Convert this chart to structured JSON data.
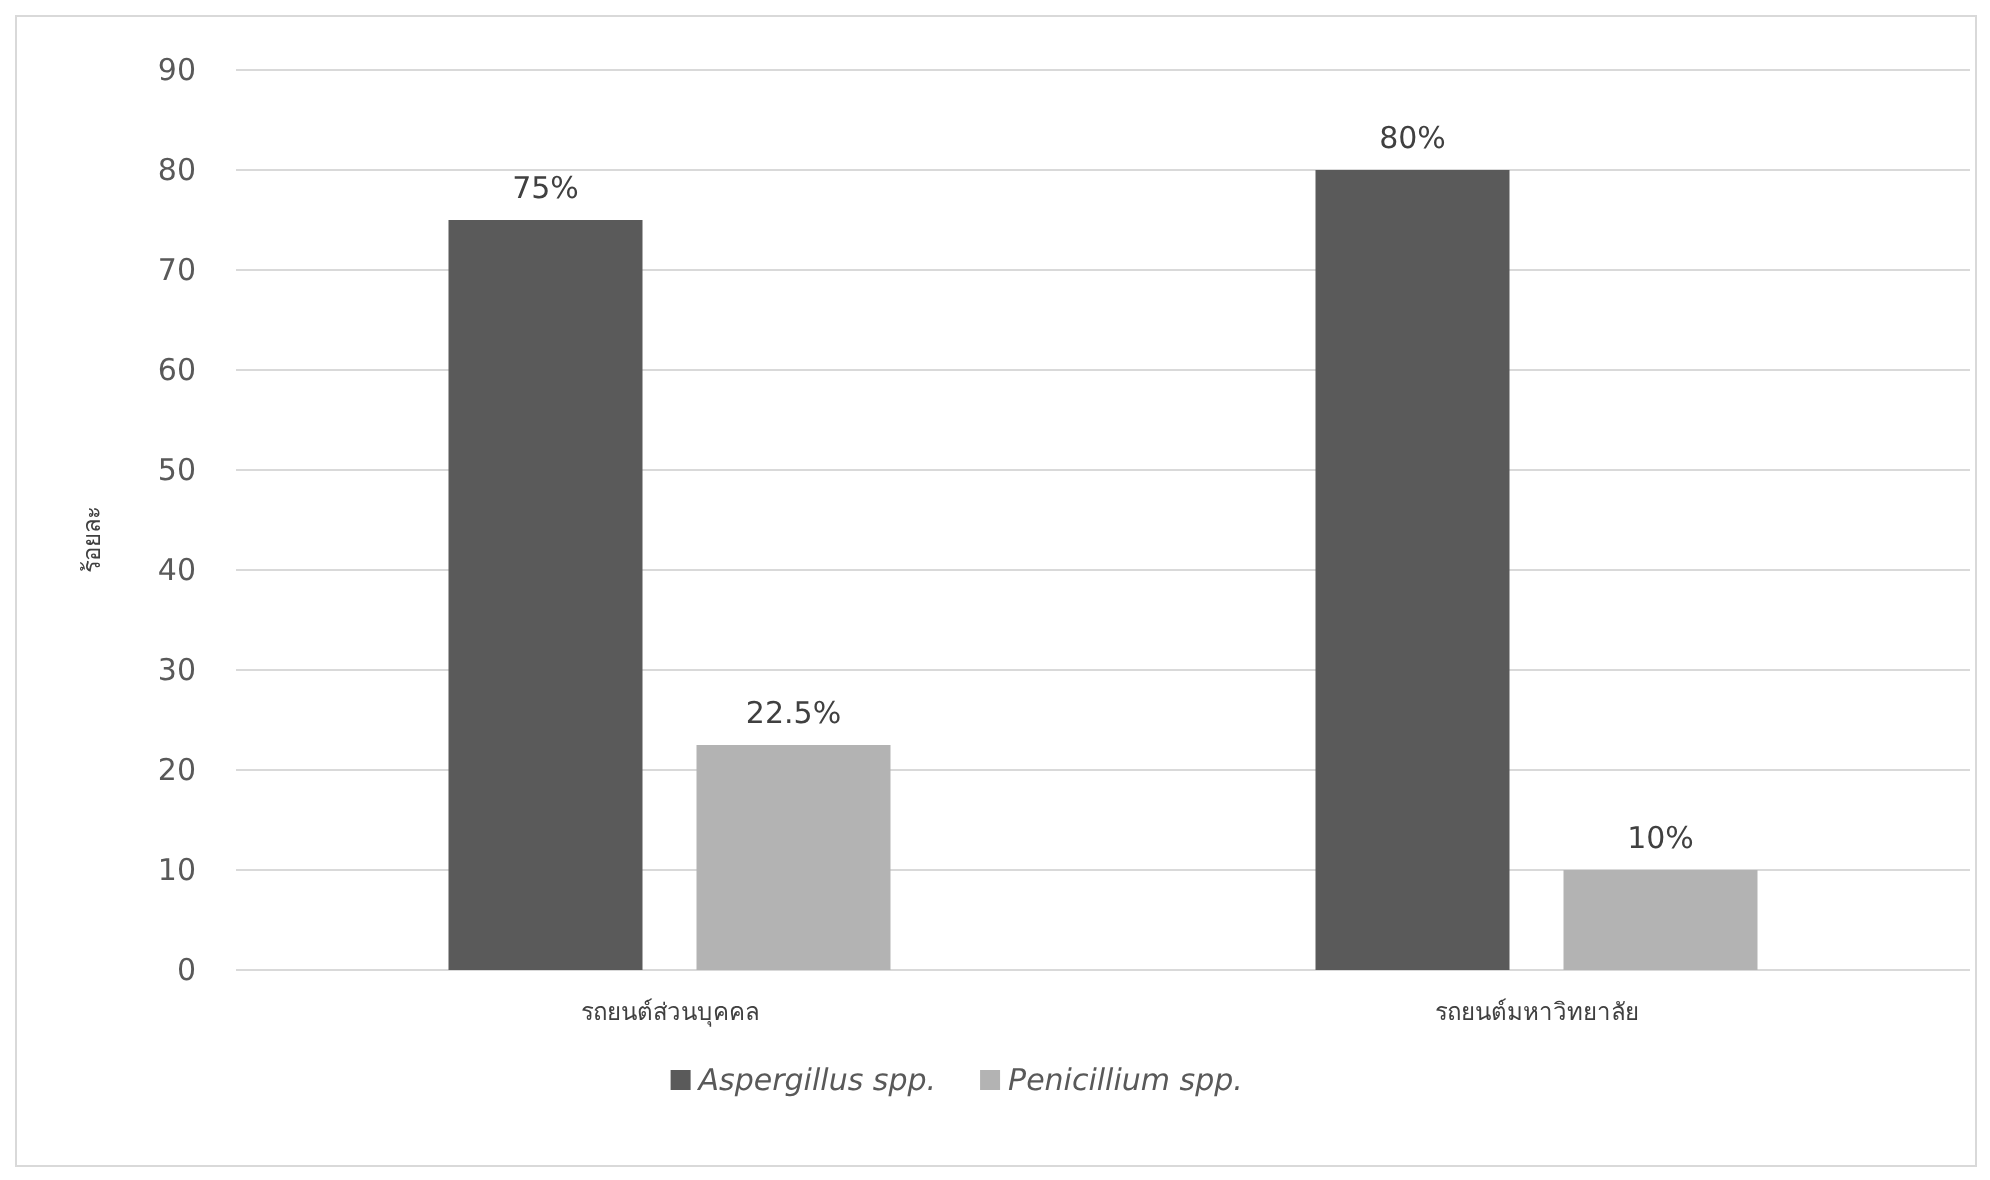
{
  "chart_data": {
    "type": "bar",
    "ylabel": "ร้อยละ",
    "categories": [
      "รถยนต์ส่วนบุคคล",
      "รถยนต์มหาวิทยาลัย"
    ],
    "series": [
      {
        "name": "Aspergillus spp.",
        "color": "#5a5a5a",
        "values": [
          75,
          80
        ],
        "value_labels": [
          "75%",
          "80%"
        ]
      },
      {
        "name": "Penicillium spp.",
        "color": "#b3b3b3",
        "values": [
          22.5,
          10
        ],
        "value_labels": [
          "22.5%",
          "10%"
        ]
      }
    ],
    "ylim": [
      0,
      90
    ],
    "yticks": [
      0,
      10,
      20,
      30,
      40,
      50,
      60,
      70,
      80,
      90
    ],
    "grid": "y",
    "legend": "bottom"
  }
}
